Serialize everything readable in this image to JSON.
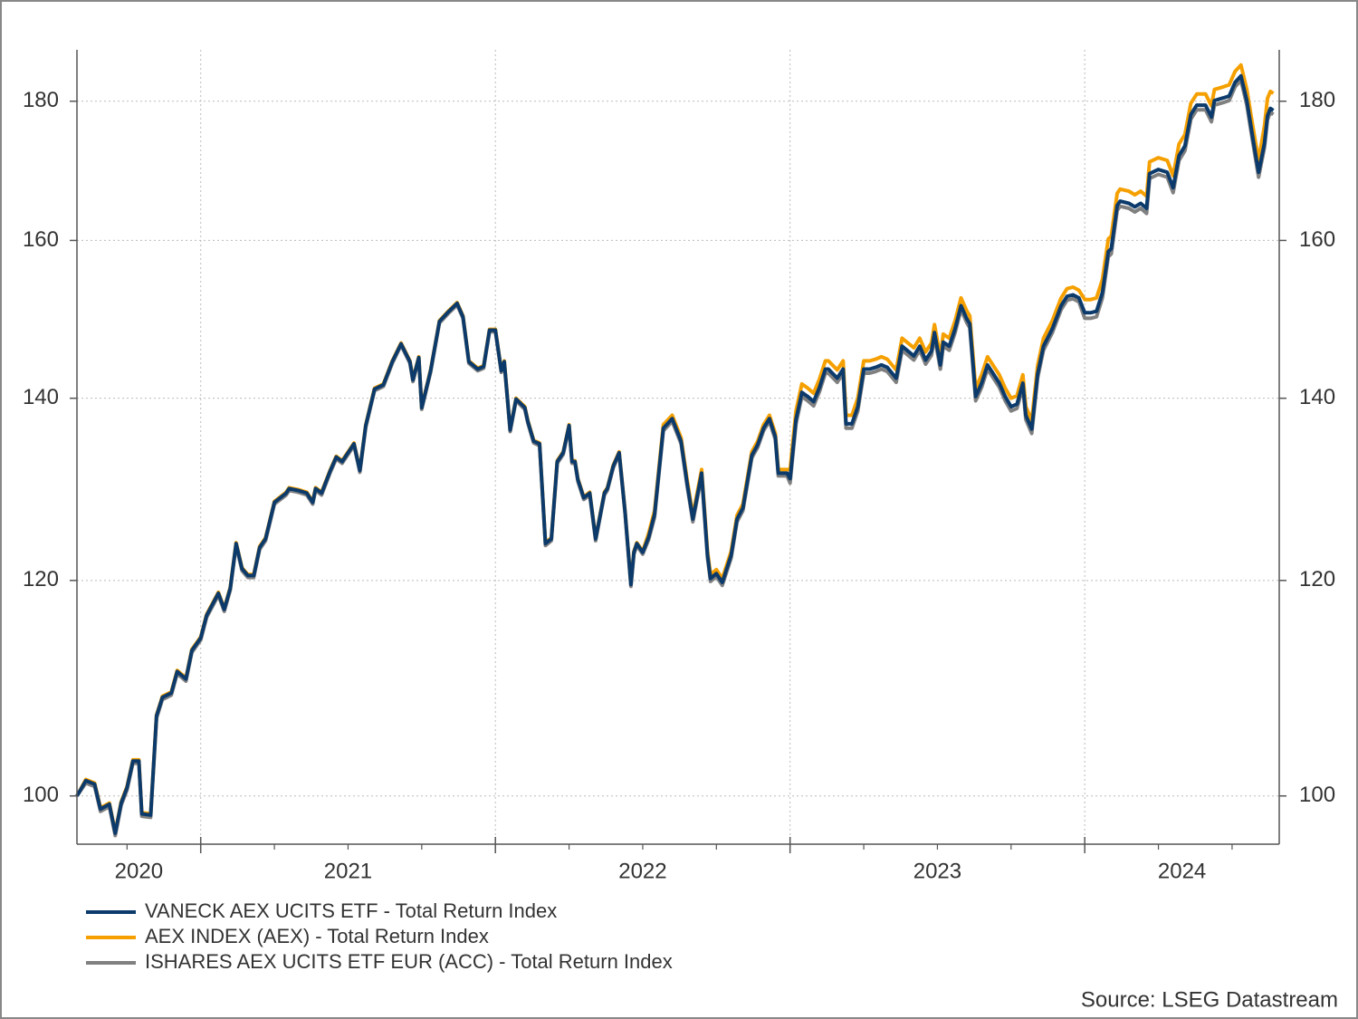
{
  "chart_data": {
    "type": "line",
    "y_scale": "log",
    "grid": true,
    "legend_position": "bottom-left",
    "source": "Source: LSEG Datastream",
    "xlim": [
      2020.58,
      2024.66
    ],
    "x_major_ticks": [
      2021,
      2022,
      2023,
      2024
    ],
    "x_minor_ticks": [
      2020.75,
      2021.25,
      2021.5,
      2021.75,
      2022.25,
      2022.5,
      2022.75,
      2023.25,
      2023.5,
      2023.75,
      2024.25,
      2024.5
    ],
    "xticks": [
      {
        "value": 2020.79,
        "label": "2020"
      },
      {
        "value": 2021.5,
        "label": "2021"
      },
      {
        "value": 2022.5,
        "label": "2022"
      },
      {
        "value": 2023.5,
        "label": "2023"
      },
      {
        "value": 2024.33,
        "label": "2024"
      }
    ],
    "ylim": [
      96,
      188
    ],
    "yticks": [
      100,
      120,
      140,
      160,
      180
    ],
    "x": [
      2020.58,
      2020.61,
      2020.64,
      2020.66,
      2020.69,
      2020.71,
      2020.73,
      2020.75,
      2020.77,
      2020.79,
      2020.8,
      2020.83,
      2020.85,
      2020.87,
      2020.9,
      2020.92,
      2020.95,
      2020.97,
      2021.0,
      2021.02,
      2021.06,
      2021.08,
      2021.1,
      2021.12,
      2021.14,
      2021.16,
      2021.18,
      2021.2,
      2021.22,
      2021.25,
      2021.29,
      2021.3,
      2021.33,
      2021.36,
      2021.38,
      2021.39,
      2021.41,
      2021.44,
      2021.46,
      2021.48,
      2021.52,
      2021.54,
      2021.56,
      2021.59,
      2021.62,
      2021.65,
      2021.68,
      2021.71,
      2021.72,
      2021.74,
      2021.75,
      2021.78,
      2021.81,
      2021.84,
      2021.87,
      2021.89,
      2021.91,
      2021.94,
      2021.96,
      2021.98,
      2022.0,
      2022.02,
      2022.03,
      2022.05,
      2022.07,
      2022.1,
      2022.11,
      2022.13,
      2022.15,
      2022.17,
      2022.19,
      2022.21,
      2022.23,
      2022.25,
      2022.26,
      2022.27,
      2022.28,
      2022.3,
      2022.32,
      2022.34,
      2022.37,
      2022.38,
      2022.4,
      2022.42,
      2022.44,
      2022.46,
      2022.47,
      2022.48,
      2022.5,
      2022.52,
      2022.54,
      2022.57,
      2022.6,
      2022.63,
      2022.65,
      2022.67,
      2022.7,
      2022.72,
      2022.73,
      2022.75,
      2022.77,
      2022.8,
      2022.82,
      2022.84,
      2022.87,
      2022.89,
      2022.91,
      2022.93,
      2022.95,
      2022.96,
      2022.99,
      2023.0,
      2023.02,
      2023.04,
      2023.06,
      2023.08,
      2023.1,
      2023.12,
      2023.13,
      2023.16,
      2023.18,
      2023.19,
      2023.21,
      2023.23,
      2023.25,
      2023.27,
      2023.29,
      2023.31,
      2023.33,
      2023.36,
      2023.38,
      2023.4,
      2023.42,
      2023.44,
      2023.46,
      2023.48,
      2023.49,
      2023.51,
      2023.52,
      2023.54,
      2023.56,
      2023.58,
      2023.6,
      2023.61,
      2023.63,
      2023.65,
      2023.67,
      2023.69,
      2023.71,
      2023.73,
      2023.75,
      2023.77,
      2023.79,
      2023.8,
      2023.82,
      2023.84,
      2023.86,
      2023.89,
      2023.92,
      2023.94,
      2023.96,
      2023.98,
      2024.0,
      2024.02,
      2024.04,
      2024.06,
      2024.08,
      2024.09,
      2024.11,
      2024.12,
      2024.15,
      2024.17,
      2024.19,
      2024.21,
      2024.22,
      2024.25,
      2024.28,
      2024.3,
      2024.32,
      2024.34,
      2024.36,
      2024.38,
      2024.41,
      2024.43,
      2024.44,
      2024.47,
      2024.49,
      2024.51,
      2024.53,
      2024.55,
      2024.57,
      2024.59,
      2024.61,
      2024.62,
      2024.63,
      2024.64
    ],
    "series": [
      {
        "name": "VANECK AEX UCITS ETF - Total Return Index",
        "color": "#0b3a6b",
        "values": [
          100.0,
          101.3,
          101.0,
          98.9,
          99.3,
          96.9,
          99.4,
          100.7,
          103.0,
          103.0,
          98.5,
          98.4,
          107.0,
          108.7,
          109.1,
          111.1,
          110.4,
          113.1,
          114.3,
          116.5,
          118.7,
          117.1,
          119.2,
          123.8,
          121.2,
          120.5,
          120.5,
          123.4,
          124.3,
          128.2,
          129.2,
          129.7,
          129.5,
          129.2,
          128.2,
          129.7,
          129.2,
          131.7,
          133.2,
          132.7,
          134.7,
          131.7,
          136.8,
          141.1,
          141.6,
          144.4,
          146.6,
          144.4,
          142.2,
          144.9,
          138.9,
          143.3,
          149.4,
          150.6,
          151.7,
          150.0,
          144.4,
          143.5,
          143.8,
          148.3,
          148.3,
          143.3,
          144.4,
          136.3,
          139.9,
          138.9,
          137.3,
          135.0,
          134.7,
          123.8,
          124.3,
          132.7,
          133.7,
          136.8,
          132.7,
          132.7,
          130.7,
          128.7,
          129.2,
          124.3,
          129.2,
          129.7,
          132.2,
          133.7,
          127.2,
          119.6,
          122.9,
          123.8,
          122.9,
          124.5,
          126.9,
          136.5,
          137.6,
          135.0,
          130.4,
          126.4,
          131.4,
          122.6,
          120.2,
          120.7,
          119.8,
          122.6,
          126.4,
          127.6,
          133.4,
          134.6,
          136.5,
          137.6,
          135.5,
          131.4,
          131.4,
          130.8,
          137.5,
          140.7,
          140.2,
          139.6,
          141.3,
          143.5,
          143.5,
          142.4,
          143.5,
          137.0,
          137.0,
          139.0,
          143.5,
          143.5,
          143.7,
          144.0,
          143.7,
          142.4,
          146.3,
          145.7,
          145.1,
          146.3,
          144.6,
          145.7,
          148.0,
          144.0,
          146.8,
          146.3,
          148.5,
          151.4,
          149.7,
          149.1,
          140.2,
          141.8,
          144.0,
          142.9,
          141.8,
          140.2,
          139.0,
          139.3,
          141.8,
          138.0,
          136.4,
          142.9,
          146.3,
          148.5,
          151.4,
          152.6,
          152.8,
          152.4,
          150.5,
          150.5,
          150.7,
          153.1,
          158.5,
          158.9,
          164.8,
          165.4,
          165.1,
          164.6,
          165.1,
          164.4,
          169.3,
          169.9,
          169.5,
          167.3,
          171.9,
          173.3,
          178.0,
          179.4,
          179.4,
          177.6,
          180.1,
          180.5,
          180.8,
          182.9,
          183.9,
          180.1,
          174.6,
          169.5,
          173.7,
          177.8,
          178.9,
          178.6
        ]
      },
      {
        "name": "AEX INDEX (AEX) - Total Return Index",
        "color": "#f5a000",
        "values": [
          100.0,
          101.4,
          101.1,
          99.0,
          99.4,
          97.0,
          99.5,
          100.8,
          103.1,
          103.1,
          98.6,
          98.5,
          107.1,
          108.8,
          109.2,
          111.2,
          110.5,
          113.2,
          114.4,
          116.6,
          118.8,
          117.2,
          119.3,
          123.9,
          121.3,
          120.6,
          120.6,
          123.5,
          124.4,
          128.3,
          129.3,
          129.8,
          129.6,
          129.3,
          128.3,
          129.8,
          129.3,
          131.8,
          133.3,
          132.8,
          134.8,
          131.8,
          136.9,
          141.2,
          141.7,
          144.5,
          146.7,
          144.5,
          142.3,
          145.0,
          139.0,
          143.4,
          149.5,
          150.7,
          151.8,
          150.1,
          144.5,
          143.6,
          143.9,
          148.4,
          148.4,
          143.4,
          144.5,
          136.4,
          140.0,
          139.0,
          137.4,
          135.1,
          134.8,
          123.9,
          124.4,
          132.8,
          133.8,
          136.9,
          132.8,
          132.8,
          130.8,
          128.8,
          129.3,
          124.4,
          129.3,
          129.8,
          132.3,
          133.8,
          127.3,
          119.7,
          123.0,
          123.9,
          123.0,
          124.9,
          127.3,
          136.9,
          138.0,
          135.4,
          130.8,
          126.8,
          131.8,
          123.0,
          120.6,
          121.1,
          120.2,
          123.0,
          126.8,
          128.0,
          133.8,
          135.0,
          136.9,
          138.0,
          135.9,
          131.8,
          131.8,
          131.8,
          138.5,
          141.7,
          141.2,
          140.6,
          142.3,
          144.5,
          144.5,
          143.4,
          144.5,
          138.0,
          138.0,
          140.0,
          144.5,
          144.5,
          144.7,
          145.0,
          144.7,
          143.4,
          147.3,
          146.7,
          146.1,
          147.3,
          145.6,
          146.7,
          149.0,
          145.0,
          147.8,
          147.3,
          149.5,
          152.4,
          150.7,
          150.1,
          141.2,
          142.8,
          145.0,
          143.9,
          142.8,
          141.2,
          140.0,
          140.3,
          142.8,
          139.0,
          137.4,
          143.9,
          147.3,
          149.5,
          152.4,
          153.6,
          153.8,
          153.4,
          152.2,
          152.2,
          152.4,
          154.8,
          160.2,
          160.6,
          166.5,
          167.1,
          166.8,
          166.3,
          166.8,
          166.1,
          171.0,
          171.6,
          171.2,
          169.0,
          173.6,
          175.0,
          179.7,
          181.1,
          181.1,
          179.3,
          181.8,
          182.2,
          182.5,
          184.6,
          185.6,
          181.8,
          176.3,
          171.2,
          176.3,
          180.4,
          181.5,
          181.2
        ]
      },
      {
        "name": "ISHARES AEX UCITS ETF EUR (ACC) - Total Return Index",
        "color": "#808080",
        "values": [
          100.0,
          101.1,
          100.8,
          98.7,
          99.1,
          96.7,
          99.2,
          100.5,
          102.8,
          102.8,
          98.3,
          98.2,
          106.8,
          108.5,
          108.9,
          110.9,
          110.2,
          112.9,
          114.1,
          116.3,
          118.5,
          116.9,
          119.0,
          123.6,
          121.0,
          120.3,
          120.3,
          123.2,
          124.1,
          128.0,
          129.0,
          129.5,
          129.3,
          129.0,
          128.0,
          129.5,
          129.0,
          131.5,
          133.0,
          132.5,
          134.5,
          131.5,
          136.6,
          140.9,
          141.4,
          144.2,
          146.4,
          144.2,
          142.0,
          144.7,
          138.7,
          143.1,
          149.2,
          150.4,
          151.5,
          149.8,
          144.2,
          143.3,
          143.6,
          148.1,
          148.1,
          143.1,
          144.2,
          136.1,
          139.7,
          138.7,
          137.1,
          134.8,
          134.5,
          123.6,
          124.1,
          132.5,
          133.5,
          136.6,
          132.5,
          132.5,
          130.5,
          128.5,
          129.0,
          124.1,
          129.0,
          129.5,
          132.0,
          133.5,
          127.0,
          119.4,
          122.7,
          123.6,
          122.7,
          124.2,
          126.6,
          136.2,
          137.3,
          134.7,
          130.1,
          126.1,
          131.1,
          122.3,
          119.9,
          120.4,
          119.5,
          122.3,
          126.1,
          127.3,
          133.1,
          134.3,
          136.2,
          137.3,
          135.2,
          131.1,
          131.1,
          130.3,
          137.0,
          140.2,
          139.7,
          139.1,
          140.8,
          143.0,
          143.0,
          141.9,
          143.0,
          136.5,
          136.5,
          138.5,
          143.0,
          143.0,
          143.2,
          143.5,
          143.2,
          141.9,
          145.8,
          145.2,
          144.6,
          145.8,
          144.1,
          145.2,
          147.5,
          143.5,
          146.3,
          145.8,
          148.0,
          150.9,
          149.2,
          148.6,
          139.7,
          141.3,
          143.5,
          142.4,
          141.3,
          139.7,
          138.5,
          138.8,
          141.3,
          137.5,
          135.9,
          142.4,
          145.8,
          148.0,
          150.9,
          152.1,
          152.3,
          151.9,
          149.8,
          149.8,
          150.0,
          152.4,
          157.8,
          158.2,
          164.1,
          164.7,
          164.4,
          163.9,
          164.4,
          163.7,
          168.6,
          169.2,
          168.8,
          166.6,
          171.2,
          172.6,
          177.3,
          178.7,
          178.7,
          176.9,
          179.4,
          179.8,
          180.1,
          182.2,
          183.2,
          179.4,
          173.9,
          168.8,
          173.1,
          177.2,
          178.3,
          178.0
        ]
      }
    ]
  }
}
